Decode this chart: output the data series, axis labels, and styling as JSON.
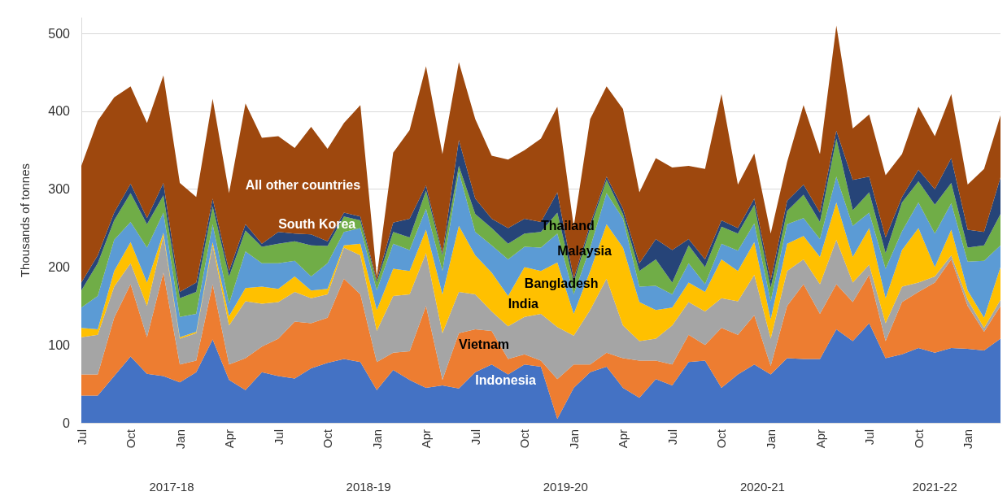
{
  "chart_data": {
    "type": "area",
    "stacked": true,
    "ylabel": "Thousands of tonnes",
    "ylim": [
      0,
      520
    ],
    "yticks": [
      0,
      100,
      200,
      300,
      400,
      500
    ],
    "grid": "y",
    "categories": [
      "Jul",
      null,
      null,
      "Oct",
      null,
      null,
      "Jan",
      null,
      null,
      "Apr",
      null,
      null,
      "Jul",
      null,
      null,
      "Oct",
      null,
      null,
      "Jan",
      null,
      null,
      "Apr",
      null,
      null,
      "Jul",
      null,
      null,
      "Oct",
      null,
      null,
      "Jan",
      null,
      null,
      "Apr",
      null,
      null,
      "Jul",
      null,
      null,
      "Oct",
      null,
      null,
      "Jan",
      null,
      null,
      "Apr",
      null,
      null,
      "Jul",
      null,
      null,
      "Oct",
      null,
      null,
      "Jan",
      null,
      null
    ],
    "annotations": [
      "2017-18",
      "2018-19",
      "2019-20",
      "2020-21",
      "2021-22"
    ],
    "series": [
      {
        "name": "Indonesia",
        "color": "#4472c4",
        "values": [
          35,
          35,
          60,
          85,
          63,
          60,
          52,
          65,
          107,
          55,
          42,
          65,
          60,
          57,
          70,
          77,
          82,
          78,
          42,
          68,
          55,
          45,
          48,
          44,
          65,
          75,
          62,
          75,
          72,
          5,
          45,
          65,
          72,
          45,
          32,
          56,
          48,
          78,
          80,
          45,
          62,
          75,
          62,
          83,
          82,
          82,
          120,
          105,
          128,
          83,
          88,
          96,
          90,
          96,
          95,
          93,
          108
        ]
      },
      {
        "name": "Vietnam",
        "color": "#ed7d31",
        "values": [
          27,
          27,
          75,
          93,
          47,
          133,
          23,
          15,
          71,
          20,
          41,
          33,
          48,
          73,
          58,
          58,
          103,
          87,
          36,
          22,
          37,
          105,
          7,
          71,
          55,
          43,
          20,
          13,
          8,
          51,
          30,
          10,
          18,
          38,
          48,
          24,
          27,
          35,
          20,
          77,
          51,
          63,
          11,
          67,
          96,
          58,
          58,
          50,
          62,
          22,
          67,
          72,
          90,
          114,
          55,
          24,
          42
        ]
      },
      {
        "name": "India",
        "color": "#a5a5a5",
        "values": [
          48,
          51,
          40,
          27,
          40,
          47,
          33,
          35,
          50,
          50,
          73,
          55,
          47,
          38,
          32,
          30,
          40,
          50,
          40,
          73,
          73,
          68,
          60,
          53,
          45,
          25,
          42,
          48,
          60,
          67,
          37,
          70,
          95,
          42,
          25,
          28,
          50,
          42,
          43,
          38,
          43,
          52,
          35,
          45,
          32,
          38,
          57,
          25,
          13,
          23,
          20,
          12,
          8,
          5,
          8,
          5,
          8
        ]
      },
      {
        "name": "Bangladesh",
        "color": "#ffc000",
        "values": [
          12,
          7,
          20,
          27,
          30,
          4,
          2,
          2,
          4,
          12,
          17,
          22,
          17,
          20,
          10,
          7,
          3,
          15,
          27,
          35,
          30,
          30,
          50,
          85,
          50,
          50,
          39,
          64,
          55,
          83,
          28,
          50,
          70,
          100,
          50,
          37,
          23,
          25,
          25,
          50,
          39,
          42,
          25,
          35,
          30,
          35,
          48,
          33,
          47,
          32,
          47,
          70,
          12,
          33,
          12,
          13,
          42
        ]
      },
      {
        "name": "Malaysia",
        "color": "#5b9bd5",
        "values": [
          26,
          43,
          40,
          26,
          45,
          26,
          26,
          23,
          23,
          16,
          47,
          30,
          33,
          20,
          18,
          33,
          17,
          20,
          25,
          32,
          27,
          27,
          30,
          69,
          30,
          35,
          47,
          26,
          30,
          37,
          25,
          30,
          40,
          37,
          20,
          31,
          17,
          25,
          10,
          20,
          26,
          24,
          23,
          25,
          23,
          23,
          33,
          40,
          20,
          38,
          24,
          33,
          43,
          34,
          37,
          73,
          28
        ]
      },
      {
        "name": "Thailand",
        "color": "#70ad47",
        "values": [
          22,
          42,
          25,
          37,
          30,
          22,
          24,
          28,
          23,
          35,
          27,
          21,
          25,
          25,
          40,
          22,
          20,
          10,
          10,
          15,
          16,
          23,
          20,
          8,
          23,
          22,
          20,
          17,
          20,
          27,
          15,
          25,
          17,
          6,
          20,
          34,
          15,
          23,
          22,
          22,
          22,
          24,
          17,
          17,
          30,
          22,
          49,
          20,
          26,
          20,
          37,
          27,
          37,
          26,
          18,
          20,
          40
        ]
      },
      {
        "name": "South Korea",
        "color": "#264478",
        "values": [
          10,
          10,
          10,
          12,
          8,
          16,
          8,
          12,
          10,
          7,
          8,
          4,
          15,
          10,
          14,
          6,
          5,
          5,
          3,
          12,
          24,
          7,
          3,
          33,
          20,
          12,
          20,
          19,
          13,
          26,
          5,
          5,
          4,
          7,
          10,
          26,
          42,
          8,
          10,
          8,
          7,
          8,
          10,
          13,
          13,
          12,
          10,
          39,
          20,
          20,
          7,
          15,
          20,
          32,
          23,
          17,
          47
        ]
      },
      {
        "name": "All other countries",
        "color": "#9e480e",
        "values": [
          150,
          173,
          148,
          125,
          122,
          138,
          140,
          110,
          128,
          100,
          155,
          136,
          123,
          110,
          138,
          119,
          115,
          143,
          5,
          90,
          114,
          153,
          127,
          100,
          102,
          81,
          88,
          88,
          107,
          110,
          67,
          135,
          116,
          128,
          91,
          104,
          106,
          94,
          116,
          162,
          56,
          58,
          60,
          50,
          102,
          75,
          135,
          66,
          80,
          80,
          55,
          81,
          68,
          82,
          58,
          81,
          80
        ]
      }
    ]
  }
}
